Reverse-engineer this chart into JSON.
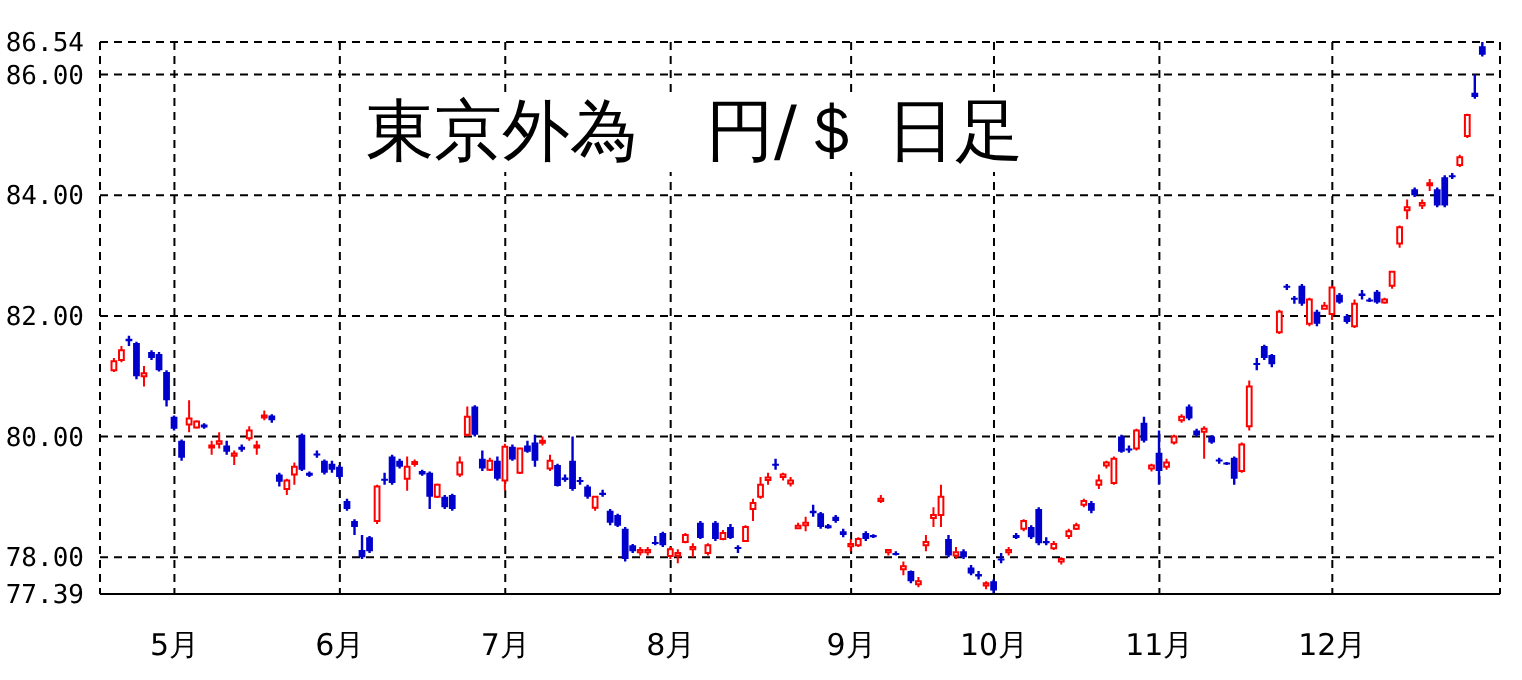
{
  "chart_data": {
    "type": "candlestick",
    "title": "東京外為　円/＄ 日足",
    "colors": [
      "#ff0000",
      "#ff0000",
      "#0000cc",
      "#0000cc",
      "#ff0000",
      "#0000cc",
      "#0000cc",
      "#0000cc",
      "#0000cc",
      "#0000cc",
      "#ff0000",
      "#ff0000",
      "#0000cc",
      "#ff0000",
      "#ff0000",
      "#0000cc",
      "#ff0000",
      "#0000cc",
      "#ff0000",
      "#ff0000",
      "#ff0000",
      "#0000cc",
      "#0000cc",
      "#ff0000",
      "#ff0000",
      "#0000cc",
      "#0000cc",
      "#0000cc",
      "#0000cc",
      "#0000cc",
      "#0000cc",
      "#0000cc",
      "#0000cc",
      "#0000cc",
      "#0000cc",
      "#ff0000",
      "#0000cc",
      "#0000cc",
      "#0000cc",
      "#ff0000",
      "#ff0000",
      "#0000cc",
      "#0000cc",
      "#ff0000",
      "#0000cc",
      "#0000cc",
      "#ff0000",
      "#ff0000",
      "#0000cc",
      "#0000cc",
      "#ff0000",
      "#0000cc",
      "#ff0000",
      "#0000cc",
      "#ff0000",
      "#0000cc",
      "#0000cc",
      "#ff0000",
      "#ff0000",
      "#0000cc",
      "#0000cc",
      "#0000cc",
      "#0000cc",
      "#0000cc",
      "#ff0000",
      "#0000cc",
      "#0000cc",
      "#0000cc",
      "#0000cc",
      "#0000cc",
      "#ff0000",
      "#ff0000",
      "#0000cc",
      "#0000cc",
      "#ff0000",
      "#ff0000",
      "#ff0000",
      "#ff0000",
      "#0000cc",
      "#ff0000",
      "#0000cc",
      "#ff0000",
      "#0000cc",
      "#0000cc",
      "#ff0000",
      "#ff0000",
      "#ff0000",
      "#ff0000",
      "#0000cc",
      "#ff0000",
      "#ff0000",
      "#ff0000",
      "#ff0000",
      "#0000cc",
      "#0000cc",
      "#0000cc",
      "#0000cc",
      "#0000cc",
      "#ff0000",
      "#ff0000",
      "#0000cc",
      "#0000cc",
      "#ff0000",
      "#ff0000",
      "#0000cc",
      "#ff0000",
      "#0000cc",
      "#ff0000",
      "#ff0000",
      "#ff0000",
      "#ff0000",
      "#0000cc",
      "#ff0000",
      "#0000cc",
      "#0000cc",
      "#0000cc",
      "#ff0000",
      "#0000cc",
      "#0000cc",
      "#ff0000",
      "#0000cc",
      "#ff0000",
      "#0000cc",
      "#0000cc",
      "#0000cc",
      "#ff0000",
      "#ff0000",
      "#ff0000",
      "#ff0000",
      "#ff0000",
      "#0000cc",
      "#ff0000",
      "#ff0000",
      "#ff0000",
      "#0000cc",
      "#0000cc",
      "#ff0000",
      "#0000cc",
      "#ff0000",
      "#0000cc",
      "#ff0000",
      "#ff0000",
      "#ff0000",
      "#0000cc",
      "#0000cc",
      "#ff0000",
      "#0000cc",
      "#0000cc",
      "#0000cc",
      "#0000cc",
      "#ff0000",
      "#ff0000",
      "#0000cc",
      "#0000cc",
      "#0000cc",
      "#ff0000",
      "#0000cc",
      "#0000cc",
      "#0000cc",
      "#ff0000",
      "#0000cc",
      "#ff0000",
      "#ff0000",
      "#0000cc",
      "#0000cc",
      "#ff0000",
      "#0000cc",
      "#0000cc",
      "#0000cc",
      "#ff0000",
      "#ff0000",
      "#ff0000",
      "#ff0000",
      "#0000cc",
      "#ff0000",
      "#ff0000",
      "#0000cc",
      "#0000cc",
      "#0000cc",
      "#ff0000",
      "#ff0000",
      "#0000cc",
      "#0000cc"
    ],
    "categories": [
      null,
      null,
      null,
      null,
      null,
      null,
      null,
      null,
      "5月",
      null,
      null,
      null,
      null,
      null,
      null,
      null,
      null,
      null,
      null,
      null,
      null,
      null,
      null,
      null,
      null,
      null,
      null,
      null,
      null,
      null,
      "6月",
      null,
      null,
      null,
      null,
      null,
      null,
      null,
      null,
      null,
      null,
      null,
      null,
      null,
      null,
      null,
      null,
      null,
      null,
      null,
      null,
      null,
      "7月",
      null,
      null,
      null,
      null,
      null,
      null,
      null,
      null,
      null,
      null,
      null,
      null,
      null,
      null,
      null,
      null,
      null,
      null,
      null,
      null,
      null,
      "8月",
      null,
      null,
      null,
      null,
      null,
      null,
      null,
      null,
      null,
      null,
      null,
      null,
      null,
      null,
      null,
      null,
      null,
      null,
      null,
      null,
      null,
      null,
      null,
      "9月",
      null,
      null,
      null,
      null,
      null,
      null,
      null,
      null,
      null,
      null,
      null,
      null,
      null,
      null,
      null,
      null,
      null,
      null,
      "10月",
      null,
      null,
      null,
      null,
      null,
      null,
      null,
      null,
      null,
      null,
      null,
      null,
      null,
      null,
      null,
      null,
      null,
      null,
      null,
      null,
      null,
      "11月",
      null,
      null,
      null,
      null,
      null,
      null,
      null,
      null,
      null,
      null,
      null,
      null,
      null,
      null,
      null,
      null,
      null,
      null,
      null,
      null,
      null,
      null,
      "12月",
      null,
      null,
      null,
      null,
      null,
      null,
      null,
      null,
      null,
      null,
      null,
      null,
      null,
      null,
      null,
      null,
      null,
      null,
      null,
      null
    ],
    "ohlc": [
      [
        81.1,
        81.3,
        81.07,
        81.25
      ],
      [
        81.27,
        81.5,
        81.23,
        81.43
      ],
      [
        81.62,
        81.67,
        81.5,
        81.58
      ],
      [
        81.55,
        81.57,
        80.95,
        81.0
      ],
      [
        81.0,
        81.17,
        80.83,
        81.05
      ],
      [
        81.4,
        81.43,
        81.27,
        81.3
      ],
      [
        81.37,
        81.4,
        81.08,
        81.1
      ],
      [
        81.07,
        81.1,
        80.5,
        80.6
      ],
      [
        80.33,
        80.35,
        80.1,
        80.13
      ],
      [
        79.93,
        79.95,
        79.6,
        79.65
      ],
      [
        80.2,
        80.6,
        80.07,
        80.3
      ],
      [
        80.15,
        80.27,
        80.13,
        80.25
      ],
      [
        80.2,
        80.22,
        80.13,
        80.15
      ],
      [
        79.82,
        79.93,
        79.7,
        79.85
      ],
      [
        79.88,
        80.07,
        79.8,
        79.92
      ],
      [
        79.85,
        79.93,
        79.7,
        79.75
      ],
      [
        79.68,
        79.77,
        79.53,
        79.72
      ],
      [
        79.83,
        79.87,
        79.75,
        79.78
      ],
      [
        79.97,
        80.17,
        79.93,
        80.1
      ],
      [
        79.82,
        79.93,
        79.7,
        79.85
      ],
      [
        80.32,
        80.43,
        80.27,
        80.35
      ],
      [
        80.35,
        80.37,
        80.23,
        80.27
      ],
      [
        79.37,
        79.4,
        79.17,
        79.25
      ],
      [
        79.13,
        79.3,
        79.03,
        79.27
      ],
      [
        79.37,
        79.57,
        79.2,
        79.5
      ],
      [
        80.03,
        80.05,
        79.43,
        79.45
      ],
      [
        79.4,
        79.42,
        79.33,
        79.35
      ],
      [
        79.72,
        79.77,
        79.65,
        79.7
      ],
      [
        79.6,
        79.62,
        79.37,
        79.4
      ],
      [
        79.55,
        79.6,
        79.4,
        79.45
      ],
      [
        79.5,
        79.53,
        79.3,
        79.33
      ],
      [
        78.93,
        78.97,
        78.77,
        78.8
      ],
      [
        78.6,
        78.63,
        78.37,
        78.5
      ],
      [
        78.12,
        78.37,
        77.97,
        78.0
      ],
      [
        78.33,
        78.35,
        78.07,
        78.1
      ],
      [
        78.6,
        79.2,
        78.55,
        79.17
      ],
      [
        79.3,
        79.4,
        79.2,
        79.28
      ],
      [
        79.67,
        79.7,
        79.2,
        79.23
      ],
      [
        79.6,
        79.63,
        79.47,
        79.5
      ],
      [
        79.3,
        79.67,
        79.1,
        79.5
      ],
      [
        79.55,
        79.62,
        79.5,
        79.58
      ],
      [
        79.43,
        79.45,
        79.35,
        79.37
      ],
      [
        79.4,
        79.42,
        78.8,
        79.0
      ],
      [
        79.0,
        79.22,
        78.98,
        79.2
      ],
      [
        79.0,
        79.03,
        78.8,
        78.83
      ],
      [
        79.03,
        79.05,
        78.77,
        78.8
      ],
      [
        79.37,
        79.67,
        79.33,
        79.57
      ],
      [
        80.03,
        80.5,
        80.0,
        80.33
      ],
      [
        80.5,
        80.52,
        80.0,
        80.03
      ],
      [
        79.63,
        79.77,
        79.43,
        79.47
      ],
      [
        79.45,
        79.65,
        79.43,
        79.6
      ],
      [
        79.6,
        79.67,
        79.27,
        79.3
      ],
      [
        79.27,
        79.88,
        79.1,
        79.83
      ],
      [
        79.83,
        79.87,
        79.6,
        79.62
      ],
      [
        79.4,
        79.82,
        79.38,
        79.8
      ],
      [
        79.85,
        79.93,
        79.73,
        79.75
      ],
      [
        79.9,
        80.03,
        79.5,
        79.6
      ],
      [
        79.9,
        80.0,
        79.85,
        79.93
      ],
      [
        79.47,
        79.7,
        79.43,
        79.6
      ],
      [
        79.53,
        79.55,
        79.17,
        79.18
      ],
      [
        79.32,
        79.37,
        79.25,
        79.28
      ],
      [
        79.6,
        80.0,
        79.1,
        79.13
      ],
      [
        79.28,
        79.33,
        79.2,
        79.25
      ],
      [
        79.17,
        79.2,
        78.97,
        79.0
      ],
      [
        78.82,
        79.02,
        78.77,
        79.0
      ],
      [
        79.07,
        79.12,
        79.0,
        79.03
      ],
      [
        78.77,
        78.8,
        78.53,
        78.57
      ],
      [
        78.7,
        78.72,
        78.5,
        78.52
      ],
      [
        78.47,
        78.5,
        77.93,
        77.97
      ],
      [
        78.2,
        78.22,
        78.07,
        78.1
      ],
      [
        78.08,
        78.17,
        78.03,
        78.12
      ],
      [
        78.08,
        78.17,
        78.03,
        78.12
      ],
      [
        78.25,
        78.35,
        78.2,
        78.23
      ],
      [
        78.4,
        78.42,
        78.17,
        78.2
      ],
      [
        78.02,
        78.17,
        77.97,
        78.13
      ],
      [
        78.03,
        78.13,
        77.9,
        78.07
      ],
      [
        78.25,
        78.4,
        78.23,
        78.37
      ],
      [
        78.13,
        78.23,
        78.0,
        78.17
      ],
      [
        78.57,
        78.6,
        78.3,
        78.32
      ],
      [
        78.07,
        78.23,
        78.03,
        78.2
      ],
      [
        78.57,
        78.6,
        78.27,
        78.3
      ],
      [
        78.3,
        78.45,
        78.28,
        78.4
      ],
      [
        78.5,
        78.55,
        78.3,
        78.32
      ],
      [
        78.17,
        78.2,
        78.07,
        78.15
      ],
      [
        78.27,
        78.53,
        78.25,
        78.5
      ],
      [
        78.8,
        78.97,
        78.6,
        78.9
      ],
      [
        79.0,
        79.33,
        78.97,
        79.2
      ],
      [
        79.28,
        79.4,
        79.2,
        79.32
      ],
      [
        79.55,
        79.63,
        79.45,
        79.52
      ],
      [
        79.33,
        79.4,
        79.27,
        79.37
      ],
      [
        79.22,
        79.33,
        79.17,
        79.27
      ],
      [
        78.48,
        78.57,
        78.47,
        78.52
      ],
      [
        78.53,
        78.67,
        78.43,
        78.57
      ],
      [
        78.77,
        78.87,
        78.67,
        78.73
      ],
      [
        78.73,
        78.75,
        78.47,
        78.5
      ],
      [
        78.53,
        78.55,
        78.47,
        78.48
      ],
      [
        78.67,
        78.7,
        78.57,
        78.6
      ],
      [
        78.43,
        78.47,
        78.33,
        78.37
      ],
      [
        78.18,
        78.3,
        78.1,
        78.22
      ],
      [
        78.2,
        78.33,
        78.17,
        78.3
      ],
      [
        78.4,
        78.43,
        78.27,
        78.3
      ],
      [
        78.37,
        78.38,
        78.32,
        78.33
      ],
      [
        78.93,
        79.03,
        78.9,
        78.97
      ],
      [
        78.08,
        78.13,
        78.03,
        78.12
      ],
      [
        78.07,
        78.1,
        78.03,
        78.05
      ],
      [
        77.8,
        77.93,
        77.7,
        77.85
      ],
      [
        77.77,
        77.78,
        77.57,
        77.6
      ],
      [
        77.55,
        77.67,
        77.5,
        77.6
      ],
      [
        78.2,
        78.37,
        78.1,
        78.25
      ],
      [
        78.65,
        78.83,
        78.5,
        78.7
      ],
      [
        78.7,
        79.2,
        78.5,
        79.0
      ],
      [
        78.3,
        78.37,
        78.0,
        78.03
      ],
      [
        78.03,
        78.17,
        77.97,
        78.08
      ],
      [
        78.1,
        78.13,
        77.97,
        78.0
      ],
      [
        77.83,
        77.87,
        77.7,
        77.73
      ],
      [
        77.72,
        77.77,
        77.63,
        77.68
      ],
      [
        77.53,
        77.6,
        77.47,
        77.57
      ],
      [
        77.6,
        77.63,
        77.4,
        77.45
      ],
      [
        77.98,
        78.07,
        77.9,
        77.95
      ],
      [
        78.08,
        78.17,
        78.03,
        78.12
      ],
      [
        78.37,
        78.4,
        78.3,
        78.32
      ],
      [
        78.47,
        78.63,
        78.43,
        78.6
      ],
      [
        78.5,
        78.53,
        78.3,
        78.33
      ],
      [
        78.8,
        78.83,
        78.2,
        78.23
      ],
      [
        78.27,
        78.33,
        78.2,
        78.23
      ],
      [
        78.15,
        78.27,
        78.12,
        78.22
      ],
      [
        77.93,
        78.0,
        77.88,
        77.97
      ],
      [
        78.35,
        78.47,
        78.3,
        78.43
      ],
      [
        78.47,
        78.57,
        78.45,
        78.53
      ],
      [
        78.87,
        78.97,
        78.83,
        78.93
      ],
      [
        78.9,
        78.93,
        78.73,
        78.77
      ],
      [
        79.2,
        79.37,
        79.13,
        79.27
      ],
      [
        79.52,
        79.6,
        79.47,
        79.57
      ],
      [
        79.23,
        79.67,
        79.2,
        79.63
      ],
      [
        80.0,
        80.03,
        79.73,
        79.75
      ],
      [
        79.8,
        79.85,
        79.73,
        79.78
      ],
      [
        79.8,
        80.13,
        79.77,
        80.1
      ],
      [
        80.23,
        80.33,
        79.9,
        79.93
      ],
      [
        79.47,
        79.55,
        79.42,
        79.52
      ],
      [
        79.73,
        80.1,
        79.2,
        79.43
      ],
      [
        79.5,
        79.63,
        79.45,
        79.57
      ],
      [
        79.9,
        80.03,
        79.87,
        80.0
      ],
      [
        80.27,
        80.37,
        80.23,
        80.33
      ],
      [
        80.5,
        80.53,
        80.27,
        80.3
      ],
      [
        80.1,
        80.13,
        80.0,
        80.02
      ],
      [
        80.08,
        80.17,
        79.63,
        80.13
      ],
      [
        80.0,
        80.02,
        79.88,
        79.9
      ],
      [
        79.62,
        79.65,
        79.55,
        79.6
      ],
      [
        79.57,
        79.58,
        79.53,
        79.55
      ],
      [
        79.65,
        79.67,
        79.2,
        79.3
      ],
      [
        79.43,
        79.9,
        79.4,
        79.87
      ],
      [
        80.17,
        80.93,
        80.1,
        80.83
      ],
      [
        81.22,
        81.3,
        81.1,
        81.2
      ],
      [
        81.5,
        81.52,
        81.27,
        81.3
      ],
      [
        81.35,
        81.37,
        81.15,
        81.2
      ],
      [
        81.73,
        82.1,
        81.7,
        82.07
      ],
      [
        82.5,
        82.53,
        82.43,
        82.47
      ],
      [
        82.3,
        82.33,
        82.2,
        82.28
      ],
      [
        82.5,
        82.53,
        82.17,
        82.2
      ],
      [
        81.87,
        82.3,
        81.83,
        82.27
      ],
      [
        82.07,
        82.1,
        81.83,
        81.87
      ],
      [
        82.12,
        82.23,
        82.1,
        82.17
      ],
      [
        82.03,
        82.5,
        81.93,
        82.47
      ],
      [
        82.35,
        82.38,
        82.2,
        82.22
      ],
      [
        82.0,
        82.03,
        81.87,
        81.9
      ],
      [
        81.83,
        82.27,
        81.8,
        82.2
      ],
      [
        82.37,
        82.43,
        82.27,
        82.33
      ],
      [
        82.27,
        82.3,
        82.23,
        82.25
      ],
      [
        82.4,
        82.43,
        82.2,
        82.22
      ],
      [
        82.22,
        82.3,
        82.2,
        82.27
      ],
      [
        82.5,
        82.75,
        82.45,
        82.73
      ],
      [
        83.2,
        83.5,
        83.13,
        83.47
      ],
      [
        83.75,
        83.93,
        83.6,
        83.8
      ],
      [
        84.1,
        84.13,
        83.97,
        84.0
      ],
      [
        83.83,
        83.93,
        83.77,
        83.87
      ],
      [
        84.17,
        84.27,
        84.07,
        84.2
      ],
      [
        84.1,
        84.13,
        83.8,
        83.83
      ],
      [
        84.3,
        84.33,
        83.8,
        83.83
      ],
      [
        84.33,
        84.37,
        84.27,
        84.3
      ],
      [
        84.5,
        84.67,
        84.47,
        84.63
      ],
      [
        84.98,
        85.35,
        84.95,
        85.33
      ],
      [
        85.7,
        86.0,
        85.6,
        85.63
      ],
      [
        86.47,
        86.54,
        86.3,
        86.33
      ]
    ],
    "ylim": [
      77.39,
      86.54
    ],
    "yticks": [
      {
        "value": 77.39,
        "label": "77.39"
      },
      {
        "value": 78,
        "label": "78.00"
      },
      {
        "value": 80,
        "label": "80.00"
      },
      {
        "value": 82,
        "label": "82.00"
      },
      {
        "value": 84,
        "label": "84.00"
      },
      {
        "value": 86,
        "label": "86.00"
      },
      {
        "value": 86.54,
        "label": "86.54"
      }
    ],
    "grid": true
  }
}
